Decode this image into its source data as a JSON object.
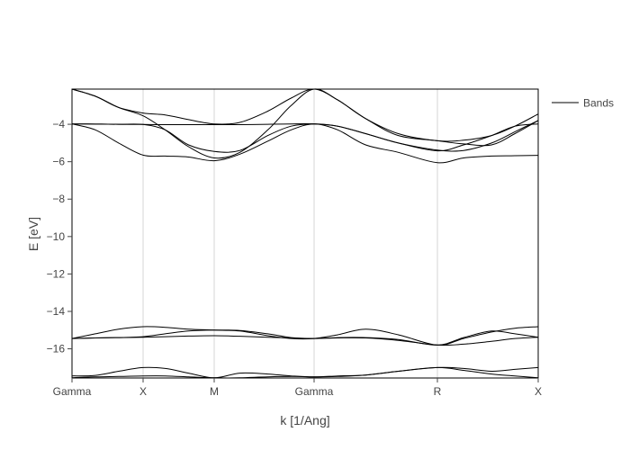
{
  "chart_data": {
    "type": "line",
    "title": "",
    "xlabel": "k [1/Ang]",
    "ylabel": "E [eV]",
    "ylim": [
      -17.56,
      -2.12
    ],
    "grid": {
      "x": true,
      "y": false
    },
    "legend": {
      "position": "right-top",
      "entries": [
        "Bands"
      ]
    },
    "x_ticks": [
      {
        "label": "Gamma",
        "pos": 0.0
      },
      {
        "label": "X",
        "pos": 0.1525
      },
      {
        "label": "M",
        "pos": 0.305
      },
      {
        "label": "Gamma",
        "pos": 0.5193
      },
      {
        "label": "R",
        "pos": 0.7838
      },
      {
        "label": "X",
        "pos": 1.0
      }
    ],
    "y_ticks": [
      -4,
      -6,
      -8,
      -10,
      -12,
      -14,
      -16
    ],
    "x": [
      0.0,
      0.05,
      0.1,
      0.1525,
      0.2,
      0.25,
      0.305,
      0.36,
      0.42,
      0.47,
      0.5193,
      0.57,
      0.63,
      0.7,
      0.7838,
      0.84,
      0.9,
      0.95,
      1.0
    ],
    "series": [
      {
        "name": "Bands",
        "values": [
          -2.12,
          -2.5,
          -3.1,
          -3.4,
          -3.5,
          -3.75,
          -3.98,
          -3.9,
          -3.3,
          -2.6,
          -2.12,
          -2.7,
          -3.7,
          -4.5,
          -4.88,
          -4.85,
          -4.6,
          -4.1,
          -3.45
        ]
      },
      {
        "name": "Bands",
        "values": [
          -2.12,
          -2.5,
          -3.1,
          -3.55,
          -4.3,
          -5.2,
          -5.8,
          -5.5,
          -4.3,
          -3.0,
          -2.12,
          -2.7,
          -3.7,
          -4.6,
          -4.88,
          -5.05,
          -5.1,
          -4.5,
          -3.8
        ]
      },
      {
        "name": "Bands",
        "values": [
          -3.98,
          -3.99,
          -4.0,
          -4.01,
          -4.02,
          -4.02,
          -4.02,
          -4.02,
          -4.0,
          -3.98,
          -3.98,
          -4.1,
          -4.5,
          -5.0,
          -5.38,
          -5.4,
          -5.0,
          -4.4,
          -3.8
        ]
      },
      {
        "name": "Bands",
        "values": [
          -3.98,
          -3.99,
          -4.0,
          -4.01,
          -4.3,
          -5.1,
          -5.45,
          -5.4,
          -4.6,
          -4.1,
          -3.98,
          -4.1,
          -4.5,
          -5.0,
          -5.42,
          -5.1,
          -4.6,
          -4.1,
          -3.98
        ]
      },
      {
        "name": "Bands",
        "values": [
          -3.98,
          -4.3,
          -5.0,
          -5.65,
          -5.7,
          -5.75,
          -5.95,
          -5.6,
          -4.9,
          -4.3,
          -3.98,
          -4.3,
          -5.1,
          -5.5,
          -6.05,
          -5.8,
          -5.7,
          -5.68,
          -5.66
        ]
      },
      {
        "name": "Bands",
        "values": [
          -15.45,
          -15.2,
          -14.95,
          -14.82,
          -14.85,
          -14.95,
          -15.0,
          -15.05,
          -15.3,
          -15.45,
          -15.45,
          -15.25,
          -14.95,
          -15.25,
          -15.8,
          -15.45,
          -15.1,
          -14.9,
          -14.82
        ]
      },
      {
        "name": "Bands",
        "values": [
          -15.45,
          -15.42,
          -15.4,
          -15.35,
          -15.2,
          -15.05,
          -15.0,
          -15.02,
          -15.2,
          -15.4,
          -15.45,
          -15.4,
          -15.4,
          -15.5,
          -15.8,
          -15.4,
          -15.05,
          -15.2,
          -15.38
        ]
      },
      {
        "name": "Bands",
        "values": [
          -15.45,
          -15.42,
          -15.4,
          -15.38,
          -15.35,
          -15.32,
          -15.3,
          -15.33,
          -15.38,
          -15.42,
          -15.45,
          -15.42,
          -15.42,
          -15.55,
          -15.8,
          -15.75,
          -15.6,
          -15.45,
          -15.38
        ]
      },
      {
        "name": "Bands",
        "values": [
          -17.45,
          -17.42,
          -17.2,
          -17.0,
          -17.05,
          -17.3,
          -17.55,
          -17.3,
          -17.35,
          -17.45,
          -17.5,
          -17.45,
          -17.4,
          -17.2,
          -17.0,
          -17.05,
          -17.2,
          -17.1,
          -17.0
        ]
      },
      {
        "name": "Bands",
        "values": [
          -17.55,
          -17.5,
          -17.48,
          -17.45,
          -17.45,
          -17.5,
          -17.55,
          -17.55,
          -17.5,
          -17.48,
          -17.5,
          -17.48,
          -17.4,
          -17.2,
          -17.0,
          -17.15,
          -17.35,
          -17.45,
          -17.55
        ]
      }
    ]
  }
}
